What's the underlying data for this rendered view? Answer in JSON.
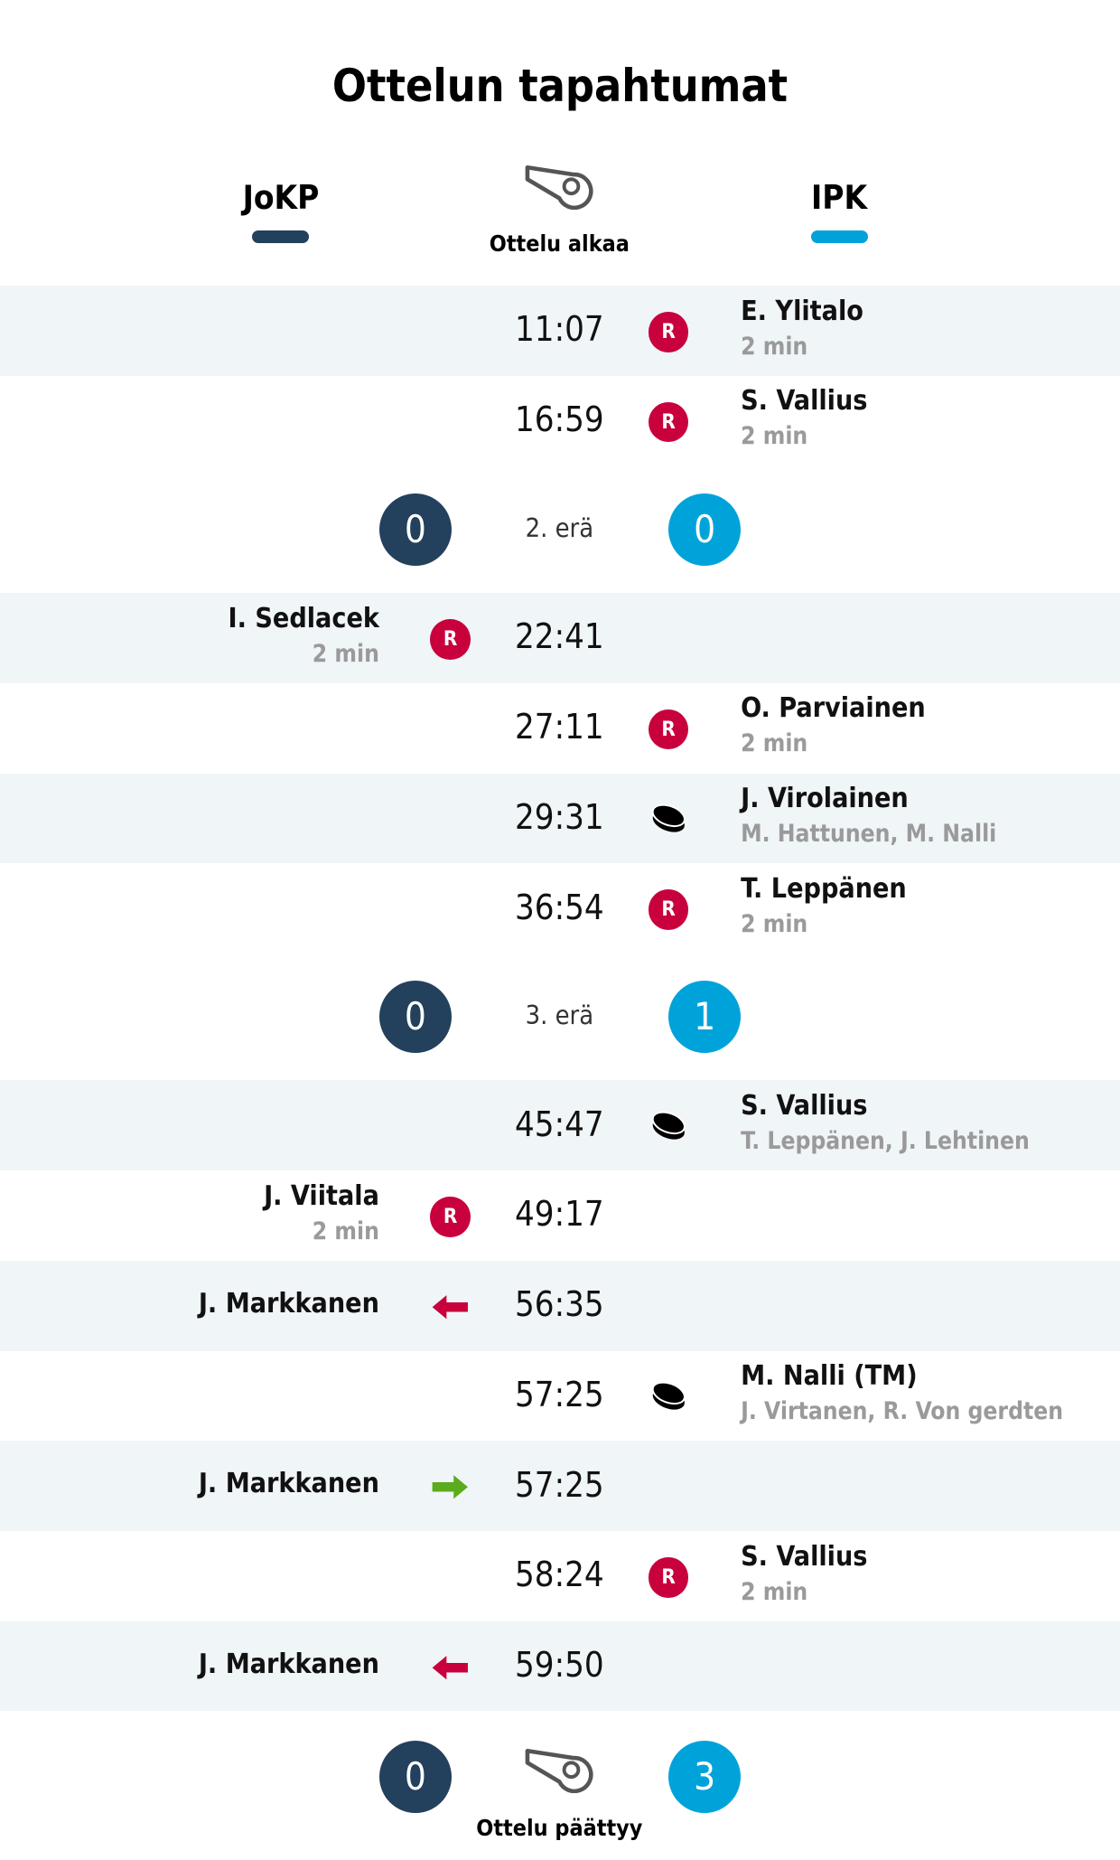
{
  "title": "Ottelun tapahtumat",
  "teams": {
    "home": {
      "name": "JoKP",
      "color": "#23405c"
    },
    "away": {
      "name": "IPK",
      "color": "#00a3d9"
    }
  },
  "start_label": "Ottelu alkaa",
  "end_label": "Ottelu päättyy",
  "colors": {
    "penalty": "#c8003c",
    "sub_in": "#5aac1c",
    "row_shade": "#f0f5f8"
  },
  "groups": [
    {
      "events": [
        {
          "time": "11:07",
          "side": "away",
          "type": "penalty",
          "icon": "R",
          "name": "E. Ylitalo",
          "detail": "2 min"
        },
        {
          "time": "16:59",
          "side": "away",
          "type": "penalty",
          "icon": "R",
          "name": "S. Vallius",
          "detail": "2 min"
        }
      ],
      "period_end": {
        "label": "2. erä",
        "home": "0",
        "away": "0"
      }
    },
    {
      "events": [
        {
          "time": "22:41",
          "side": "home",
          "type": "penalty",
          "icon": "R",
          "name": "I. Sedlacek",
          "detail": "2 min"
        },
        {
          "time": "27:11",
          "side": "away",
          "type": "penalty",
          "icon": "R",
          "name": "O. Parviainen",
          "detail": "2 min"
        },
        {
          "time": "29:31",
          "side": "away",
          "type": "goal",
          "icon": "puck",
          "name": "J. Virolainen",
          "detail": "M. Hattunen, M. Nalli"
        },
        {
          "time": "36:54",
          "side": "away",
          "type": "penalty",
          "icon": "R",
          "name": "T. Leppänen",
          "detail": "2 min"
        }
      ],
      "period_end": {
        "label": "3. erä",
        "home": "0",
        "away": "1"
      }
    },
    {
      "events": [
        {
          "time": "45:47",
          "side": "away",
          "type": "goal",
          "icon": "puck",
          "name": "S. Vallius",
          "detail": "T. Leppänen, J. Lehtinen"
        },
        {
          "time": "49:17",
          "side": "home",
          "type": "penalty",
          "icon": "R",
          "name": "J. Viitala",
          "detail": "2 min"
        },
        {
          "time": "56:35",
          "side": "home",
          "type": "goalie-out",
          "icon": "arrow-left",
          "name": "J. Markkanen",
          "detail": ""
        },
        {
          "time": "57:25",
          "side": "away",
          "type": "goal",
          "icon": "puck",
          "name": "M. Nalli (TM)",
          "detail": "J. Virtanen, R. Von gerdten"
        },
        {
          "time": "57:25",
          "side": "home",
          "type": "goalie-in",
          "icon": "arrow-right",
          "name": "J. Markkanen",
          "detail": ""
        },
        {
          "time": "58:24",
          "side": "away",
          "type": "penalty",
          "icon": "R",
          "name": "S. Vallius",
          "detail": "2 min"
        },
        {
          "time": "59:50",
          "side": "home",
          "type": "goalie-out",
          "icon": "arrow-left",
          "name": "J. Markkanen",
          "detail": ""
        }
      ]
    }
  ],
  "final": {
    "home": "0",
    "away": "3"
  }
}
